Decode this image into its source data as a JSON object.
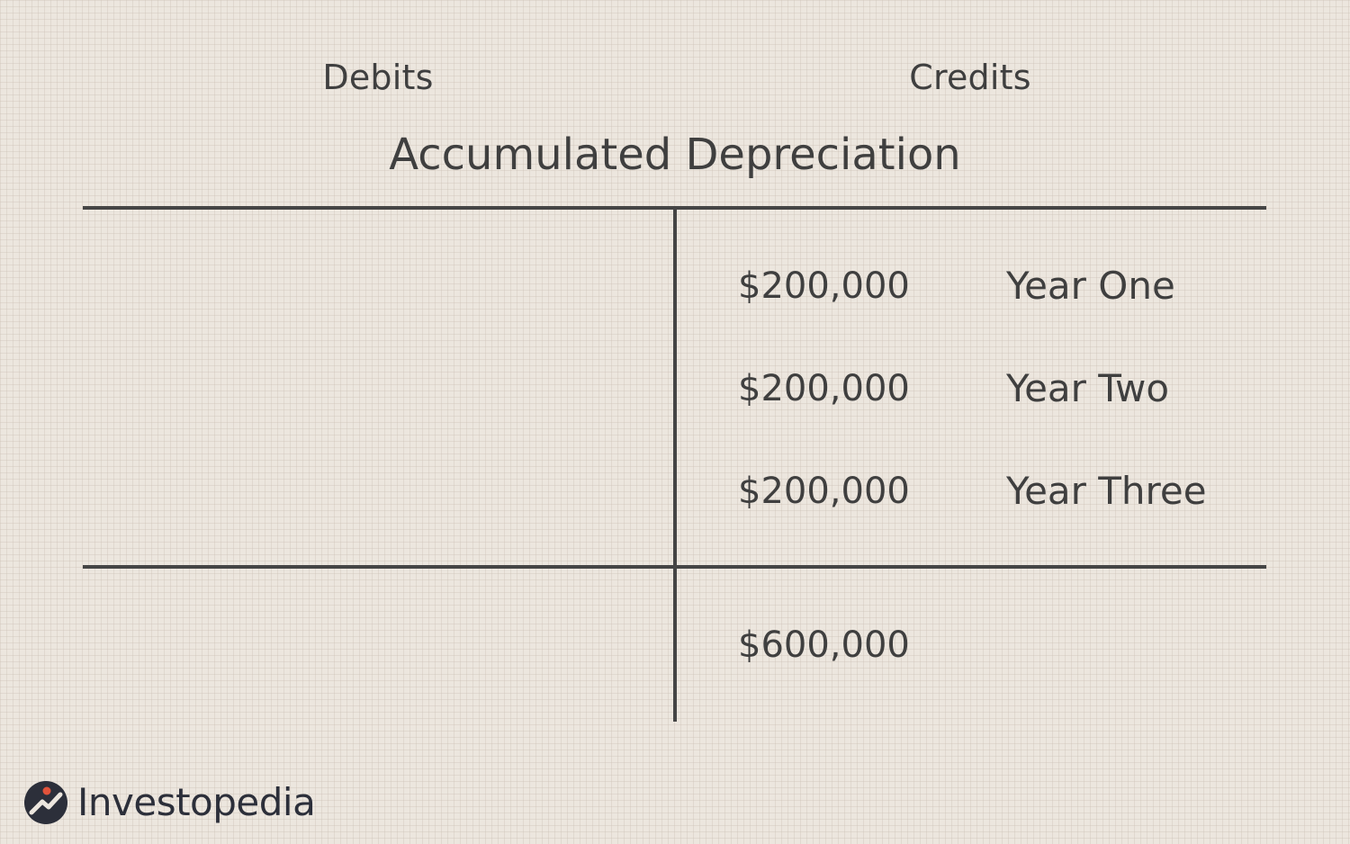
{
  "header": {
    "debits": "Debits",
    "credits": "Credits"
  },
  "title": "Accumulated Depreciation",
  "credits": {
    "entries": [
      {
        "amount": "$200,000",
        "label": "Year One"
      },
      {
        "amount": "$200,000",
        "label": "Year Two"
      },
      {
        "amount": "$200,000",
        "label": "Year Three"
      }
    ],
    "total": "$600,000"
  },
  "brand": {
    "name": "Investopedia",
    "logo_icon": "investopedia-logo-icon",
    "colors": {
      "navy": "#2c2f3a",
      "accent": "#e2533b"
    }
  }
}
